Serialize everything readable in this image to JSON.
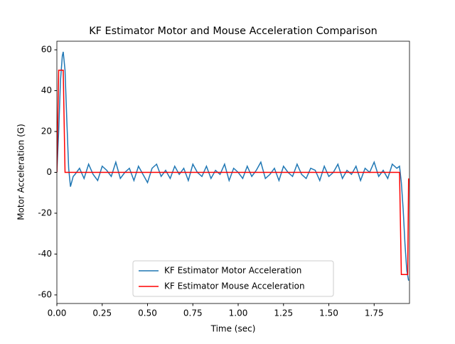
{
  "chart_data": {
    "type": "line",
    "title": "KF Estimator Motor and Mouse Acceleration Comparison",
    "x_label": "Time (sec)",
    "y_label": "Motor Acceleration (G)",
    "xlim": [
      0,
      1.945
    ],
    "ylim": [
      -64.2,
      64.2
    ],
    "xticks": [
      {
        "value": 0,
        "label": "0.00"
      },
      {
        "value": 0.25,
        "label": "0.25"
      },
      {
        "value": 0.5,
        "label": "0.50"
      },
      {
        "value": 0.75,
        "label": "0.75"
      },
      {
        "value": 1,
        "label": "1.00"
      },
      {
        "value": 1.25,
        "label": "1.25"
      },
      {
        "value": 1.5,
        "label": "1.50"
      },
      {
        "value": 1.75,
        "label": "1.75"
      }
    ],
    "yticks": [
      -60,
      -40,
      -20,
      0,
      20,
      40,
      60
    ],
    "legend": "lower center",
    "series": [
      {
        "name": "KF Estimator Motor Acceleration",
        "color": "#1f77b4",
        "x": [
          0,
          0.01,
          0.02,
          0.03,
          0.035,
          0.045,
          0.055,
          0.065,
          0.075,
          0.09,
          0.1,
          0.125,
          0.15,
          0.175,
          0.2,
          0.225,
          0.25,
          0.275,
          0.3,
          0.325,
          0.35,
          0.375,
          0.4,
          0.425,
          0.45,
          0.475,
          0.5,
          0.525,
          0.55,
          0.575,
          0.6,
          0.625,
          0.65,
          0.675,
          0.7,
          0.725,
          0.75,
          0.775,
          0.8,
          0.825,
          0.85,
          0.875,
          0.9,
          0.925,
          0.95,
          0.975,
          1.0,
          1.025,
          1.05,
          1.075,
          1.1,
          1.125,
          1.15,
          1.175,
          1.2,
          1.225,
          1.25,
          1.275,
          1.3,
          1.325,
          1.35,
          1.375,
          1.4,
          1.425,
          1.45,
          1.475,
          1.5,
          1.525,
          1.55,
          1.575,
          1.6,
          1.625,
          1.65,
          1.675,
          1.7,
          1.725,
          1.75,
          1.775,
          1.8,
          1.825,
          1.85,
          1.875,
          1.89,
          1.9,
          1.91,
          1.92,
          1.93,
          1.94
        ],
        "values": [
          0,
          20,
          45,
          57,
          59,
          50,
          25,
          2,
          -7,
          -2,
          -1,
          2,
          -3,
          4,
          -1,
          -4,
          3,
          1,
          -2,
          5,
          -3,
          0,
          2,
          -4,
          3,
          -1,
          -5,
          2,
          4,
          -2,
          1,
          -3,
          3,
          -1,
          2,
          -4,
          4,
          0,
          -2,
          3,
          -3,
          1,
          -1,
          4,
          -4,
          2,
          0,
          -3,
          3,
          -2,
          1,
          5,
          -3,
          -1,
          2,
          -4,
          3,
          0,
          -2,
          4,
          -1,
          -3,
          2,
          1,
          -4,
          3,
          -2,
          0,
          4,
          -3,
          1,
          -1,
          3,
          -4,
          2,
          0,
          5,
          -2,
          1,
          -3,
          4,
          2,
          3,
          -5,
          -18,
          -35,
          -48,
          -53
        ]
      },
      {
        "name": "KF Estimator Mouse Acceleration",
        "color": "#ff0000",
        "x": [
          0,
          0.01,
          0.035,
          0.045,
          1.89,
          1.9,
          1.935,
          1.94
        ],
        "values": [
          0,
          50,
          50,
          0,
          0,
          -50,
          -50,
          -3
        ]
      }
    ]
  }
}
